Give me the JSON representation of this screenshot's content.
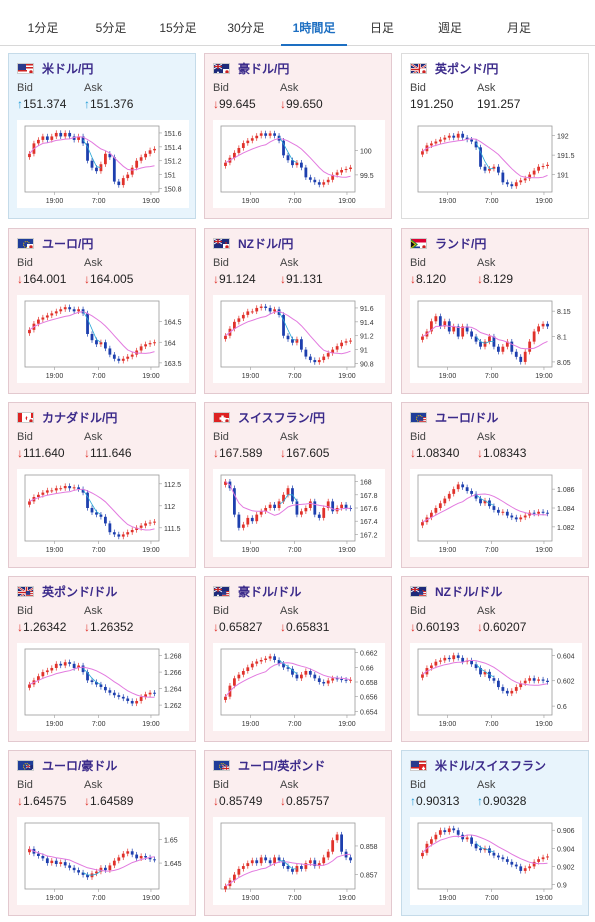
{
  "tabs": [
    {
      "label": "1分足",
      "active": false
    },
    {
      "label": "5分足",
      "active": false
    },
    {
      "label": "15分足",
      "active": false
    },
    {
      "label": "30分足",
      "active": false
    },
    {
      "label": "1時間足",
      "active": true
    },
    {
      "label": "日足",
      "active": false
    },
    {
      "label": "週足",
      "active": false
    },
    {
      "label": "月足",
      "active": false
    }
  ],
  "bid_label": "Bid",
  "ask_label": "Ask",
  "colors": {
    "down": "#e0322b",
    "up": "#1e9ad6",
    "title": "#3b2a8a",
    "active_tab": "#1d6fc2",
    "ma_line": "#e27adf",
    "signal_line": "#29a8d6"
  },
  "cards": [
    {
      "name": "usd-jpy",
      "title": "米ドル/円",
      "flag": "us",
      "dir": "up",
      "bid": "151.374",
      "ask": "151.376",
      "chart_data": {
        "type": "candlestick",
        "x_labels": [
          "19:00",
          "7:00",
          "19:00"
        ],
        "y_ticks": [
          "151.6",
          "151.4",
          "151.2",
          "151",
          "150.8"
        ],
        "ylim": [
          150.75,
          151.7
        ],
        "close": [
          151.3,
          151.45,
          151.5,
          151.55,
          151.5,
          151.55,
          151.6,
          151.55,
          151.6,
          151.55,
          151.5,
          151.55,
          151.45,
          151.2,
          151.1,
          151.05,
          151.15,
          151.3,
          151.25,
          150.9,
          150.85,
          150.95,
          151.0,
          151.1,
          151.2,
          151.25,
          151.3,
          151.35,
          151.37
        ]
      }
    },
    {
      "name": "aud-jpy",
      "title": "豪ドル/円",
      "flag": "au",
      "dir": "down",
      "bid": "99.645",
      "ask": "99.650",
      "chart_data": {
        "type": "candlestick",
        "x_labels": [
          "19:00",
          "7:00",
          "19:00"
        ],
        "y_ticks": [
          "100",
          "99.5"
        ],
        "ylim": [
          99.15,
          100.5
        ],
        "close": [
          99.75,
          99.85,
          99.95,
          100.05,
          100.15,
          100.2,
          100.25,
          100.3,
          100.35,
          100.3,
          100.35,
          100.3,
          100.2,
          99.9,
          99.8,
          99.7,
          99.75,
          99.65,
          99.45,
          99.4,
          99.35,
          99.3,
          99.35,
          99.4,
          99.5,
          99.55,
          99.6,
          99.62,
          99.65
        ]
      }
    },
    {
      "name": "gbp-jpy",
      "title": "英ポンド/円",
      "flag": "gb",
      "dir": "none",
      "bid": "191.250",
      "ask": "191.257",
      "chart_data": {
        "type": "candlestick",
        "x_labels": [
          "19:00",
          "7:00",
          "19:00"
        ],
        "y_ticks": [
          "192",
          "191.5",
          "191"
        ],
        "ylim": [
          190.55,
          192.25
        ],
        "close": [
          191.6,
          191.75,
          191.8,
          191.85,
          191.9,
          191.95,
          192.0,
          191.95,
          192.05,
          191.95,
          191.9,
          191.85,
          191.7,
          191.2,
          191.1,
          191.15,
          191.2,
          191.05,
          190.8,
          190.75,
          190.7,
          190.8,
          190.85,
          190.9,
          191.0,
          191.1,
          191.2,
          191.22,
          191.25
        ]
      }
    },
    {
      "name": "eur-jpy",
      "title": "ユーロ/円",
      "flag": "eu",
      "dir": "down",
      "bid": "164.001",
      "ask": "164.005",
      "chart_data": {
        "type": "candlestick",
        "x_labels": [
          "19:00",
          "7:00",
          "19:00"
        ],
        "y_ticks": [
          "164.5",
          "164",
          "163.5"
        ],
        "ylim": [
          163.4,
          165.0
        ],
        "close": [
          164.3,
          164.45,
          164.55,
          164.6,
          164.65,
          164.7,
          164.75,
          164.8,
          164.85,
          164.8,
          164.75,
          164.8,
          164.7,
          164.2,
          164.05,
          163.95,
          164.0,
          163.85,
          163.7,
          163.6,
          163.55,
          163.6,
          163.65,
          163.7,
          163.8,
          163.9,
          163.95,
          163.98,
          164.0
        ]
      }
    },
    {
      "name": "nzd-jpy",
      "title": "NZドル/円",
      "flag": "nz",
      "dir": "down",
      "bid": "91.124",
      "ask": "91.131",
      "chart_data": {
        "type": "candlestick",
        "x_labels": [
          "19:00",
          "7:00",
          "19:00"
        ],
        "y_ticks": [
          "91.6",
          "91.4",
          "91.2",
          "91",
          "90.8"
        ],
        "ylim": [
          90.75,
          91.7
        ],
        "close": [
          91.2,
          91.3,
          91.4,
          91.45,
          91.5,
          91.55,
          91.55,
          91.6,
          91.62,
          91.6,
          91.55,
          91.58,
          91.5,
          91.2,
          91.15,
          91.1,
          91.15,
          91.0,
          90.9,
          90.85,
          90.82,
          90.85,
          90.9,
          90.95,
          91.0,
          91.05,
          91.1,
          91.12,
          91.13
        ]
      }
    },
    {
      "name": "zar-jpy",
      "title": "ランド/円",
      "flag": "za",
      "dir": "down",
      "bid": "8.120",
      "ask": "8.129",
      "chart_data": {
        "type": "candlestick",
        "x_labels": [
          "19:00",
          "7:00",
          "19:00"
        ],
        "y_ticks": [
          "8.15",
          "8.1",
          "8.05"
        ],
        "ylim": [
          8.04,
          8.17
        ],
        "close": [
          8.1,
          8.11,
          8.13,
          8.14,
          8.12,
          8.13,
          8.11,
          8.12,
          8.1,
          8.12,
          8.11,
          8.1,
          8.09,
          8.08,
          8.09,
          8.1,
          8.08,
          8.07,
          8.08,
          8.09,
          8.07,
          8.06,
          8.05,
          8.07,
          8.09,
          8.11,
          8.12,
          8.125,
          8.12
        ]
      }
    },
    {
      "name": "cad-jpy",
      "title": "カナダドル/円",
      "flag": "ca",
      "dir": "down",
      "bid": "111.640",
      "ask": "111.646",
      "chart_data": {
        "type": "candlestick",
        "x_labels": [
          "19:00",
          "7:00",
          "19:00"
        ],
        "y_ticks": [
          "112.5",
          "112",
          "111.5"
        ],
        "ylim": [
          111.2,
          112.7
        ],
        "close": [
          112.1,
          112.2,
          112.25,
          112.3,
          112.35,
          112.35,
          112.4,
          112.4,
          112.45,
          112.4,
          112.42,
          112.38,
          112.3,
          111.95,
          111.85,
          111.8,
          111.75,
          111.6,
          111.4,
          111.35,
          111.3,
          111.35,
          111.4,
          111.45,
          111.5,
          111.55,
          111.6,
          111.62,
          111.64
        ]
      }
    },
    {
      "name": "chf-jpy",
      "title": "スイスフラン/円",
      "flag": "ch",
      "dir": "down",
      "bid": "167.589",
      "ask": "167.605",
      "chart_data": {
        "type": "candlestick",
        "x_labels": [
          "19:00",
          "7:00",
          "19:00"
        ],
        "y_ticks": [
          "168",
          "167.8",
          "167.6",
          "167.4",
          "167.2"
        ],
        "ylim": [
          167.1,
          168.1
        ],
        "close": [
          168.0,
          167.9,
          167.5,
          167.3,
          167.35,
          167.45,
          167.4,
          167.5,
          167.55,
          167.6,
          167.65,
          167.6,
          167.7,
          167.8,
          167.9,
          167.7,
          167.5,
          167.55,
          167.6,
          167.7,
          167.5,
          167.45,
          167.6,
          167.7,
          167.55,
          167.6,
          167.65,
          167.6,
          167.59
        ]
      }
    },
    {
      "name": "eur-usd",
      "title": "ユーロ/ドル",
      "flag": "eu-us",
      "dir": "down",
      "bid": "1.08340",
      "ask": "1.08343",
      "chart_data": {
        "type": "candlestick",
        "x_labels": [
          "19:00",
          "7:00",
          "19:00"
        ],
        "y_ticks": [
          "1.086",
          "1.084",
          "1.082"
        ],
        "ylim": [
          1.0805,
          1.0875
        ],
        "close": [
          1.0825,
          1.083,
          1.0835,
          1.084,
          1.0845,
          1.085,
          1.0855,
          1.086,
          1.0865,
          1.0862,
          1.0858,
          1.0855,
          1.085,
          1.0845,
          1.0848,
          1.0842,
          1.0838,
          1.0835,
          1.0836,
          1.0832,
          1.083,
          1.0828,
          1.083,
          1.0832,
          1.0835,
          1.0834,
          1.0836,
          1.0835,
          1.0834
        ]
      }
    },
    {
      "name": "gbp-usd",
      "title": "英ポンド/ドル",
      "flag": "gb-us",
      "dir": "down",
      "bid": "1.26342",
      "ask": "1.26352",
      "chart_data": {
        "type": "candlestick",
        "x_labels": [
          "19:00",
          "7:00",
          "19:00"
        ],
        "y_ticks": [
          "1.268",
          "1.266",
          "1.264",
          "1.262"
        ],
        "ylim": [
          1.2608,
          1.2688
        ],
        "close": [
          1.2645,
          1.265,
          1.2655,
          1.266,
          1.2662,
          1.2665,
          1.267,
          1.2668,
          1.2672,
          1.267,
          1.2665,
          1.2668,
          1.266,
          1.265,
          1.2648,
          1.2645,
          1.2642,
          1.2638,
          1.2635,
          1.2632,
          1.263,
          1.2628,
          1.2625,
          1.2622,
          1.2625,
          1.263,
          1.2633,
          1.2635,
          1.2634
        ]
      }
    },
    {
      "name": "aud-usd",
      "title": "豪ドル/ドル",
      "flag": "au-us",
      "dir": "down",
      "bid": "0.65827",
      "ask": "0.65831",
      "chart_data": {
        "type": "candlestick",
        "x_labels": [
          "19:00",
          "7:00",
          "19:00"
        ],
        "y_ticks": [
          "0.662",
          "0.66",
          "0.658",
          "0.656",
          "0.654"
        ],
        "ylim": [
          0.6535,
          0.6625
        ],
        "close": [
          0.656,
          0.6575,
          0.6585,
          0.659,
          0.6595,
          0.66,
          0.6605,
          0.6608,
          0.661,
          0.6612,
          0.6615,
          0.661,
          0.6605,
          0.66,
          0.6598,
          0.659,
          0.6585,
          0.659,
          0.6595,
          0.659,
          0.6585,
          0.658,
          0.6578,
          0.6582,
          0.6585,
          0.6584,
          0.6583,
          0.6582,
          0.6583
        ]
      }
    },
    {
      "name": "nzd-usd",
      "title": "NZドル/ドル",
      "flag": "nz-us",
      "dir": "down",
      "bid": "0.60193",
      "ask": "0.60207",
      "chart_data": {
        "type": "candlestick",
        "x_labels": [
          "19:00",
          "7:00",
          "19:00"
        ],
        "y_ticks": [
          "0.604",
          "0.602",
          "0.6"
        ],
        "ylim": [
          0.5993,
          0.6045
        ],
        "close": [
          0.6025,
          0.603,
          0.6032,
          0.6035,
          0.6036,
          0.6038,
          0.6037,
          0.604,
          0.6038,
          0.6035,
          0.6036,
          0.6033,
          0.603,
          0.6025,
          0.6027,
          0.6022,
          0.602,
          0.6015,
          0.6012,
          0.601,
          0.6012,
          0.6015,
          0.6018,
          0.602,
          0.6022,
          0.602,
          0.6021,
          0.602,
          0.6019
        ]
      }
    },
    {
      "name": "eur-aud",
      "title": "ユーロ/豪ドル",
      "flag": "eu-au",
      "dir": "down",
      "bid": "1.64575",
      "ask": "1.64589",
      "chart_data": {
        "type": "candlestick",
        "x_labels": [
          "19:00",
          "7:00",
          "19:00"
        ],
        "y_ticks": [
          "1.65",
          "1.645"
        ],
        "ylim": [
          1.6395,
          1.6535
        ],
        "close": [
          1.648,
          1.647,
          1.6465,
          1.646,
          1.645,
          1.6455,
          1.6448,
          1.6452,
          1.6445,
          1.644,
          1.6435,
          1.643,
          1.6425,
          1.642,
          1.6428,
          1.6432,
          1.644,
          1.6435,
          1.6445,
          1.6455,
          1.6462,
          1.647,
          1.6475,
          1.6468,
          1.646,
          1.6465,
          1.6462,
          1.6458,
          1.6457
        ]
      }
    },
    {
      "name": "eur-gbp",
      "title": "ユーロ/英ポンド",
      "flag": "eu-gb",
      "dir": "down",
      "bid": "0.85749",
      "ask": "0.85757",
      "chart_data": {
        "type": "candlestick",
        "x_labels": [
          "19:00",
          "7:00",
          "19:00"
        ],
        "y_ticks": [
          "0.858",
          "0.857"
        ],
        "ylim": [
          0.8565,
          0.8588
        ],
        "close": [
          0.8566,
          0.8568,
          0.857,
          0.8572,
          0.8573,
          0.8574,
          0.8575,
          0.8574,
          0.8576,
          0.8575,
          0.8574,
          0.8576,
          0.8575,
          0.8573,
          0.8572,
          0.8571,
          0.8573,
          0.8572,
          0.8574,
          0.8575,
          0.8573,
          0.8574,
          0.8576,
          0.8578,
          0.8582,
          0.8584,
          0.8578,
          0.8576,
          0.8575
        ]
      }
    },
    {
      "name": "usd-chf",
      "title": "米ドル/スイスフラン",
      "flag": "us-ch",
      "dir": "up",
      "bid": "0.90313",
      "ask": "0.90328",
      "chart_data": {
        "type": "candlestick",
        "x_labels": [
          "19:00",
          "7:00",
          "19:00"
        ],
        "y_ticks": [
          "0.906",
          "0.904",
          "0.902",
          "0.9"
        ],
        "ylim": [
          0.8995,
          0.9068
        ],
        "close": [
          0.9035,
          0.9045,
          0.905,
          0.9055,
          0.906,
          0.9058,
          0.9062,
          0.906,
          0.9055,
          0.905,
          0.9052,
          0.9045,
          0.904,
          0.9038,
          0.904,
          0.9035,
          0.9032,
          0.903,
          0.9028,
          0.9025,
          0.9022,
          0.902,
          0.9015,
          0.9018,
          0.902,
          0.9025,
          0.9028,
          0.903,
          0.9031
        ]
      }
    }
  ]
}
